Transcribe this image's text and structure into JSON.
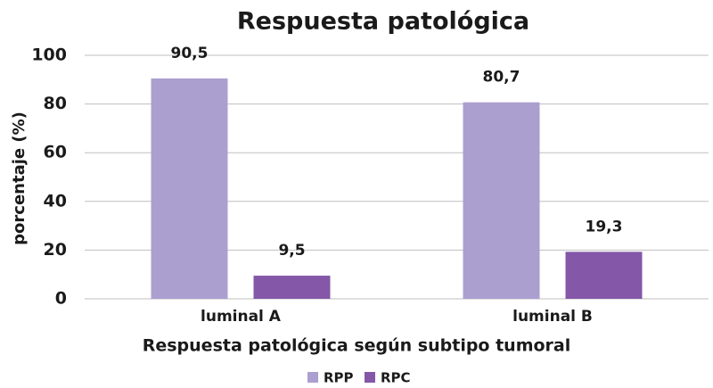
{
  "chart_data": {
    "type": "bar",
    "title": "Respuesta patológica",
    "x_label": "Respuesta patológica según subtipo tumoral",
    "y_label": "porcentaje (%)",
    "categories": [
      "luminal A",
      "luminal B"
    ],
    "series": [
      {
        "name": "RPP",
        "color": "#ab9fd0",
        "values": [
          90.5,
          80.7
        ],
        "value_labels": [
          "90,5",
          "80,7"
        ]
      },
      {
        "name": "RPC",
        "color": "#8457a8",
        "values": [
          9.5,
          19.3
        ],
        "value_labels": [
          "9,5",
          "19,3"
        ]
      }
    ],
    "ylim": [
      0,
      100
    ],
    "yticks": [
      0,
      20,
      40,
      60,
      80,
      100
    ],
    "grid": true,
    "legend": "bottom"
  }
}
